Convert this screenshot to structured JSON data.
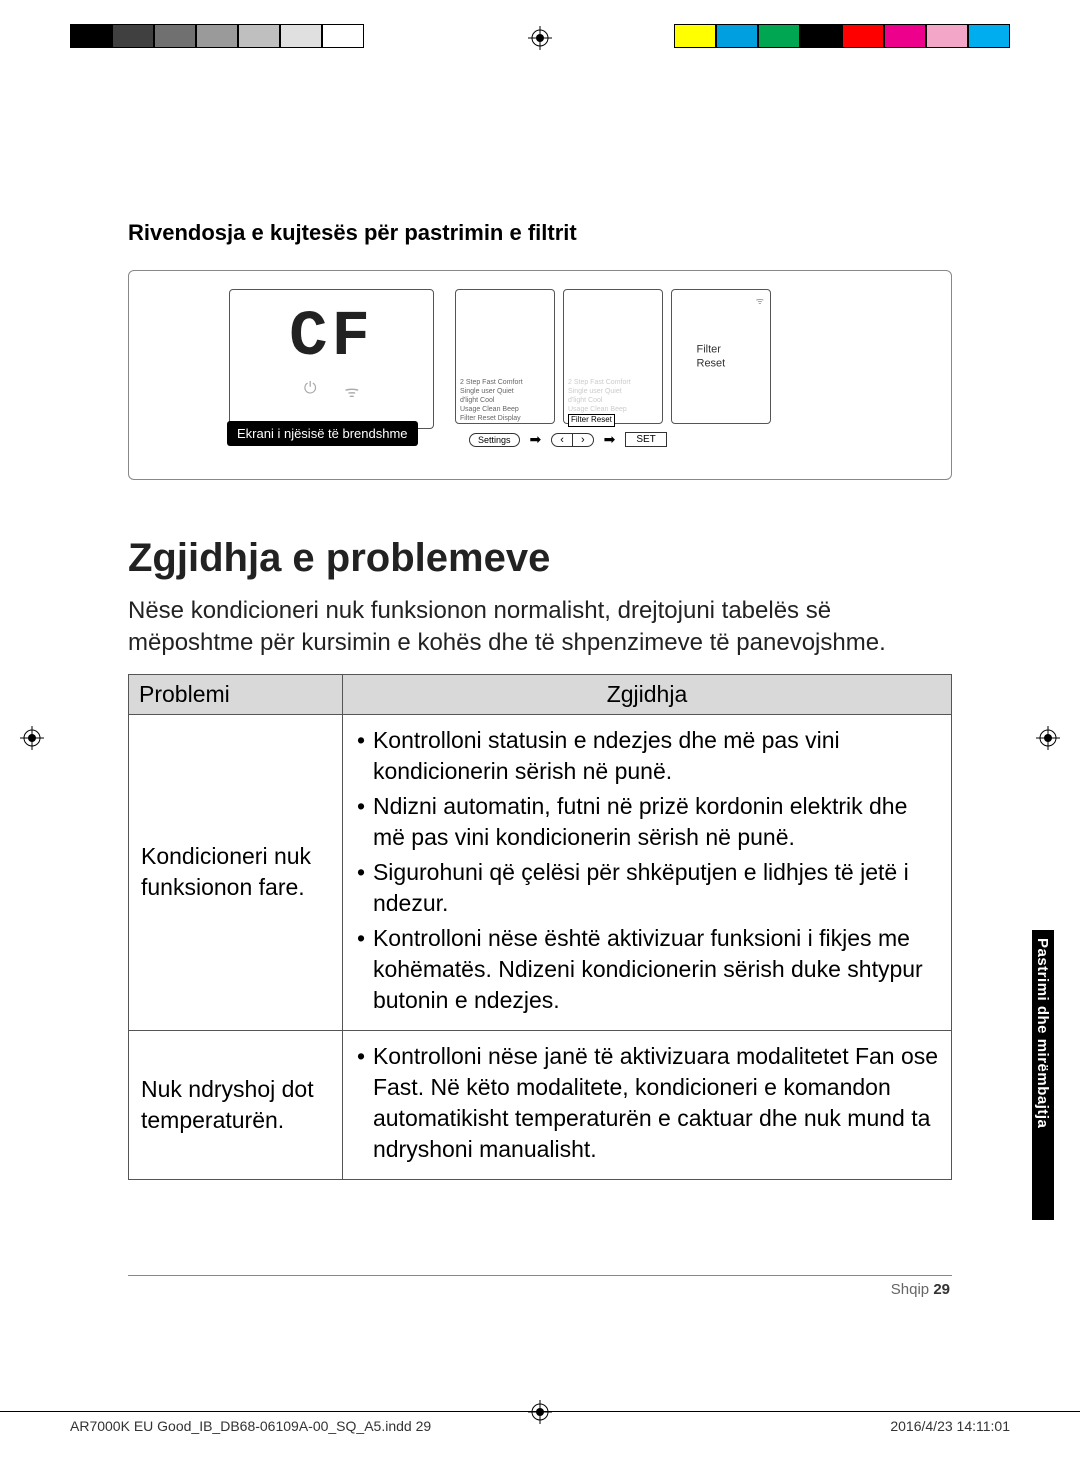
{
  "colorbar": {
    "left": [
      "#000000",
      "#404040",
      "#707070",
      "#9a9a9a",
      "#bfbfbf",
      "#e0e0e0",
      "#ffffff"
    ],
    "right": [
      "#ffff00",
      "#00a0e0",
      "#00a651",
      "#000000",
      "#ff0000",
      "#ec008c",
      "#f4a6c9",
      "#00aeef"
    ]
  },
  "subtitle": "Rivendosja e kujtesës për pastrimin e filtrit",
  "diagram": {
    "seg_display": "CF",
    "indoor_label": "Ekrani i njësisë të brendshme",
    "remote_lines": [
      "2 Step  Fast  Comfort",
      "Single user  Quiet",
      "d'light Cool",
      "Usage   Clean    Beep",
      "Filter Reset    Display"
    ],
    "remote2_highlight": "Filter Reset",
    "remote3_label": "Filter Reset",
    "btn_settings": "Settings",
    "btn_set": "SET"
  },
  "title": "Zgjidhja e problemeve",
  "intro": "Nëse kondicioneri nuk funksionon normalisht, drejtojuni tabelës së mëposhtme për kursimin e kohës dhe të shpenzimeve të panevojshme.",
  "table": {
    "headers": [
      "Problemi",
      "Zgjidhja"
    ],
    "rows": [
      {
        "problem": "Kondicioneri nuk funksionon fare.",
        "solutions": [
          "Kontrolloni statusin e ndezjes dhe më pas vini kondicionerin sërish në punë.",
          "Ndizni automatin, futni në prizë kordonin elektrik dhe më pas vini kondicionerin sërish në punë.",
          "Sigurohuni që çelësi për shkëputjen e lidhjes të jetë i ndezur.",
          "Kontrolloni nëse është aktivizuar funksioni i fikjes me kohëmatës. Ndizeni kondicionerin sërish duke shtypur butonin e ndezjes."
        ]
      },
      {
        "problem": "Nuk ndryshoj dot temperaturën.",
        "solutions": [
          "Kontrolloni nëse janë të aktivizuara modalitetet Fan ose Fast. Në këto modalitete, kondicioneri e komandon automatikisht temperaturën e caktuar dhe nuk mund ta ndryshoni manualisht."
        ]
      }
    ]
  },
  "side_tab": "Pastrimi dhe mirëmbajtja",
  "page": {
    "lang": "Shqip",
    "num": "29"
  },
  "footer": {
    "file": "AR7000K EU Good_IB_DB68-06109A-00_SQ_A5.indd   29",
    "timestamp": "2016/4/23   14:11:01"
  }
}
